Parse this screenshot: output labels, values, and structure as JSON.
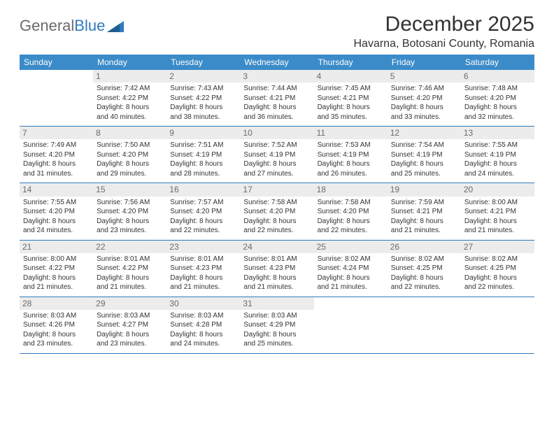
{
  "brand": {
    "part1": "General",
    "part2": "Blue"
  },
  "title": "December 2025",
  "location": "Havarna, Botosani County, Romania",
  "colors": {
    "header_bg": "#3b8bc9",
    "header_text": "#ffffff",
    "daynum_bg": "#ececec",
    "daynum_text": "#6b6b6b",
    "divider": "#2f7bbf",
    "body_text": "#333333",
    "logo_gray": "#6b6b6b",
    "logo_blue": "#2f7bbf",
    "background": "#ffffff"
  },
  "typography": {
    "title_fontsize": 30,
    "location_fontsize": 16,
    "weekday_fontsize": 12,
    "daynum_fontsize": 12,
    "cell_fontsize": 10,
    "font_family": "Arial"
  },
  "weekdays": [
    "Sunday",
    "Monday",
    "Tuesday",
    "Wednesday",
    "Thursday",
    "Friday",
    "Saturday"
  ],
  "weeks": [
    [
      {
        "n": "",
        "lines": [
          "",
          "",
          "",
          ""
        ]
      },
      {
        "n": "1",
        "lines": [
          "Sunrise: 7:42 AM",
          "Sunset: 4:22 PM",
          "Daylight: 8 hours",
          "and 40 minutes."
        ]
      },
      {
        "n": "2",
        "lines": [
          "Sunrise: 7:43 AM",
          "Sunset: 4:22 PM",
          "Daylight: 8 hours",
          "and 38 minutes."
        ]
      },
      {
        "n": "3",
        "lines": [
          "Sunrise: 7:44 AM",
          "Sunset: 4:21 PM",
          "Daylight: 8 hours",
          "and 36 minutes."
        ]
      },
      {
        "n": "4",
        "lines": [
          "Sunrise: 7:45 AM",
          "Sunset: 4:21 PM",
          "Daylight: 8 hours",
          "and 35 minutes."
        ]
      },
      {
        "n": "5",
        "lines": [
          "Sunrise: 7:46 AM",
          "Sunset: 4:20 PM",
          "Daylight: 8 hours",
          "and 33 minutes."
        ]
      },
      {
        "n": "6",
        "lines": [
          "Sunrise: 7:48 AM",
          "Sunset: 4:20 PM",
          "Daylight: 8 hours",
          "and 32 minutes."
        ]
      }
    ],
    [
      {
        "n": "7",
        "lines": [
          "Sunrise: 7:49 AM",
          "Sunset: 4:20 PM",
          "Daylight: 8 hours",
          "and 31 minutes."
        ]
      },
      {
        "n": "8",
        "lines": [
          "Sunrise: 7:50 AM",
          "Sunset: 4:20 PM",
          "Daylight: 8 hours",
          "and 29 minutes."
        ]
      },
      {
        "n": "9",
        "lines": [
          "Sunrise: 7:51 AM",
          "Sunset: 4:19 PM",
          "Daylight: 8 hours",
          "and 28 minutes."
        ]
      },
      {
        "n": "10",
        "lines": [
          "Sunrise: 7:52 AM",
          "Sunset: 4:19 PM",
          "Daylight: 8 hours",
          "and 27 minutes."
        ]
      },
      {
        "n": "11",
        "lines": [
          "Sunrise: 7:53 AM",
          "Sunset: 4:19 PM",
          "Daylight: 8 hours",
          "and 26 minutes."
        ]
      },
      {
        "n": "12",
        "lines": [
          "Sunrise: 7:54 AM",
          "Sunset: 4:19 PM",
          "Daylight: 8 hours",
          "and 25 minutes."
        ]
      },
      {
        "n": "13",
        "lines": [
          "Sunrise: 7:55 AM",
          "Sunset: 4:19 PM",
          "Daylight: 8 hours",
          "and 24 minutes."
        ]
      }
    ],
    [
      {
        "n": "14",
        "lines": [
          "Sunrise: 7:55 AM",
          "Sunset: 4:20 PM",
          "Daylight: 8 hours",
          "and 24 minutes."
        ]
      },
      {
        "n": "15",
        "lines": [
          "Sunrise: 7:56 AM",
          "Sunset: 4:20 PM",
          "Daylight: 8 hours",
          "and 23 minutes."
        ]
      },
      {
        "n": "16",
        "lines": [
          "Sunrise: 7:57 AM",
          "Sunset: 4:20 PM",
          "Daylight: 8 hours",
          "and 22 minutes."
        ]
      },
      {
        "n": "17",
        "lines": [
          "Sunrise: 7:58 AM",
          "Sunset: 4:20 PM",
          "Daylight: 8 hours",
          "and 22 minutes."
        ]
      },
      {
        "n": "18",
        "lines": [
          "Sunrise: 7:58 AM",
          "Sunset: 4:20 PM",
          "Daylight: 8 hours",
          "and 22 minutes."
        ]
      },
      {
        "n": "19",
        "lines": [
          "Sunrise: 7:59 AM",
          "Sunset: 4:21 PM",
          "Daylight: 8 hours",
          "and 21 minutes."
        ]
      },
      {
        "n": "20",
        "lines": [
          "Sunrise: 8:00 AM",
          "Sunset: 4:21 PM",
          "Daylight: 8 hours",
          "and 21 minutes."
        ]
      }
    ],
    [
      {
        "n": "21",
        "lines": [
          "Sunrise: 8:00 AM",
          "Sunset: 4:22 PM",
          "Daylight: 8 hours",
          "and 21 minutes."
        ]
      },
      {
        "n": "22",
        "lines": [
          "Sunrise: 8:01 AM",
          "Sunset: 4:22 PM",
          "Daylight: 8 hours",
          "and 21 minutes."
        ]
      },
      {
        "n": "23",
        "lines": [
          "Sunrise: 8:01 AM",
          "Sunset: 4:23 PM",
          "Daylight: 8 hours",
          "and 21 minutes."
        ]
      },
      {
        "n": "24",
        "lines": [
          "Sunrise: 8:01 AM",
          "Sunset: 4:23 PM",
          "Daylight: 8 hours",
          "and 21 minutes."
        ]
      },
      {
        "n": "25",
        "lines": [
          "Sunrise: 8:02 AM",
          "Sunset: 4:24 PM",
          "Daylight: 8 hours",
          "and 21 minutes."
        ]
      },
      {
        "n": "26",
        "lines": [
          "Sunrise: 8:02 AM",
          "Sunset: 4:25 PM",
          "Daylight: 8 hours",
          "and 22 minutes."
        ]
      },
      {
        "n": "27",
        "lines": [
          "Sunrise: 8:02 AM",
          "Sunset: 4:25 PM",
          "Daylight: 8 hours",
          "and 22 minutes."
        ]
      }
    ],
    [
      {
        "n": "28",
        "lines": [
          "Sunrise: 8:03 AM",
          "Sunset: 4:26 PM",
          "Daylight: 8 hours",
          "and 23 minutes."
        ]
      },
      {
        "n": "29",
        "lines": [
          "Sunrise: 8:03 AM",
          "Sunset: 4:27 PM",
          "Daylight: 8 hours",
          "and 23 minutes."
        ]
      },
      {
        "n": "30",
        "lines": [
          "Sunrise: 8:03 AM",
          "Sunset: 4:28 PM",
          "Daylight: 8 hours",
          "and 24 minutes."
        ]
      },
      {
        "n": "31",
        "lines": [
          "Sunrise: 8:03 AM",
          "Sunset: 4:29 PM",
          "Daylight: 8 hours",
          "and 25 minutes."
        ]
      },
      {
        "n": "",
        "lines": [
          "",
          "",
          "",
          ""
        ]
      },
      {
        "n": "",
        "lines": [
          "",
          "",
          "",
          ""
        ]
      },
      {
        "n": "",
        "lines": [
          "",
          "",
          "",
          ""
        ]
      }
    ]
  ]
}
